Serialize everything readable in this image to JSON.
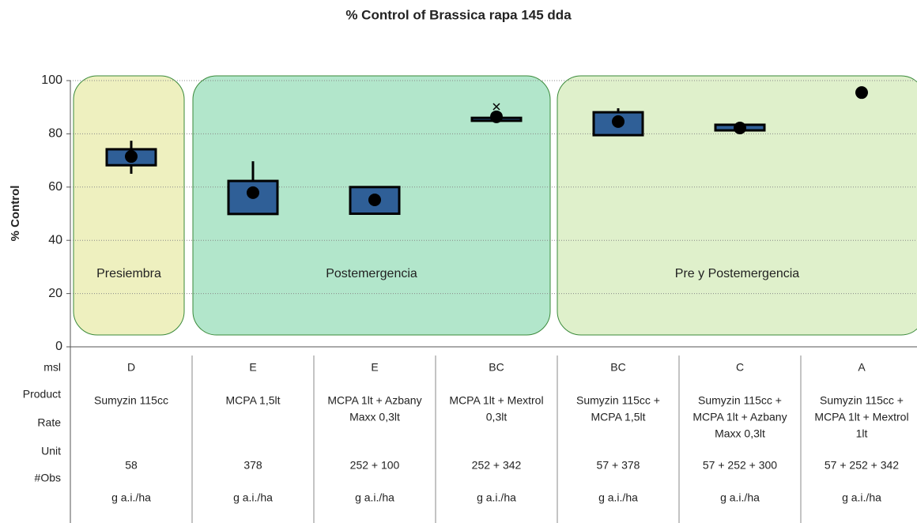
{
  "chart_data": {
    "type": "box",
    "title": "% Control of Brassica rapa 145 dda",
    "y_label": "% Control",
    "ylim": [
      0,
      100
    ],
    "yticks": [
      0,
      20,
      40,
      60,
      80,
      100
    ],
    "grid": true,
    "box_color": "#2f5f97",
    "q1": [
      68.2,
      49.9,
      50,
      84.9,
      79.5,
      81.3,
      null
    ],
    "q3": [
      74.2,
      62.3,
      60,
      86,
      88.1,
      83.4,
      null
    ],
    "whisker_low": [
      65,
      50,
      50,
      null,
      79.5,
      null,
      null
    ],
    "whisker_high": [
      77.4,
      69.7,
      60,
      null,
      89.6,
      null,
      null
    ],
    "mean": [
      71.5,
      57.9,
      55.2,
      86.4,
      84.6,
      82.2,
      95.5
    ],
    "outliers": [
      null,
      null,
      null,
      90.2,
      null,
      null,
      null
    ],
    "regions": [
      {
        "label": "Presiembra",
        "color": "#eef0bf"
      },
      {
        "label": "Postemergencia",
        "color": "#b2e6cb"
      },
      {
        "label": "Pre y Postemergencia",
        "color": "#dff0cb"
      }
    ]
  },
  "table": {
    "row_labels": [
      "msl",
      "Product",
      "Rate",
      "Unit",
      "#Obs"
    ],
    "columns": [
      {
        "msl": "D",
        "product": [
          "Sumyzin 115cc"
        ],
        "rate": "58",
        "unit": "g a.i./ha"
      },
      {
        "msl": "E",
        "product": [
          "MCPA 1,5lt"
        ],
        "rate": "378",
        "unit": "g a.i./ha"
      },
      {
        "msl": "E",
        "product": [
          "MCPA 1lt + Azbany",
          "Maxx 0,3lt"
        ],
        "rate": "252 + 100",
        "unit": "g a.i./ha"
      },
      {
        "msl": "BC",
        "product": [
          "MCPA 1lt + Mextrol",
          "0,3lt"
        ],
        "rate": "252 + 342",
        "unit": "g a.i./ha"
      },
      {
        "msl": "BC",
        "product": [
          "Sumyzin 115cc +",
          "MCPA 1,5lt"
        ],
        "rate": "57 + 378",
        "unit": "g a.i./ha"
      },
      {
        "msl": "C",
        "product": [
          "Sumyzin 115cc +",
          "MCPA 1lt + Azbany",
          "Maxx 0,3lt"
        ],
        "rate": "57 + 252 + 300",
        "unit": "g a.i./ha"
      },
      {
        "msl": "A",
        "product": [
          "Sumyzin 115cc +",
          "MCPA 1lt + Mextrol",
          "1lt"
        ],
        "rate": "57 + 252 + 342",
        "unit": "g a.i./ha"
      }
    ]
  }
}
